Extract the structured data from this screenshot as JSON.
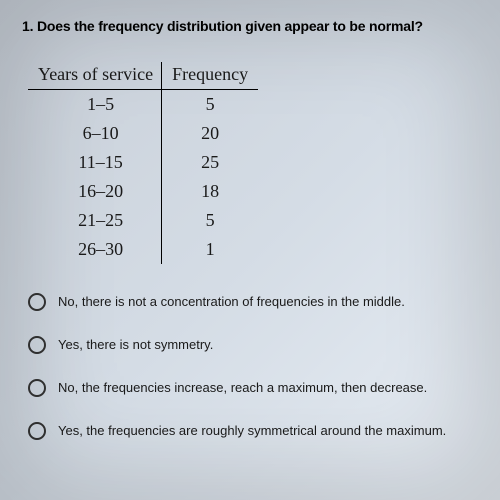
{
  "question": {
    "number": "1.",
    "text": "Does the frequency distribution given appear to be normal?"
  },
  "table": {
    "columns": [
      "Years of service",
      "Frequency"
    ],
    "rows": [
      [
        "1–5",
        "5"
      ],
      [
        "6–10",
        "20"
      ],
      [
        "11–15",
        "25"
      ],
      [
        "16–20",
        "18"
      ],
      [
        "21–25",
        "5"
      ],
      [
        "26–30",
        "1"
      ]
    ]
  },
  "options": [
    "No, there is not a concentration of frequencies in the middle.",
    "Yes, there is not symmetry.",
    "No, the frequencies increase, reach a maximum, then decrease.",
    "Yes, the frequencies are roughly symmetrical around the maximum."
  ],
  "styling": {
    "background_gradient": [
      "#c8cfd8",
      "#d4dce5",
      "#e8eef5"
    ],
    "question_fontsize": 14,
    "table_fontsize": 18,
    "option_fontsize": 13,
    "text_color": "#1a1a1a",
    "border_color": "#000000",
    "radio_border": "#333333"
  }
}
